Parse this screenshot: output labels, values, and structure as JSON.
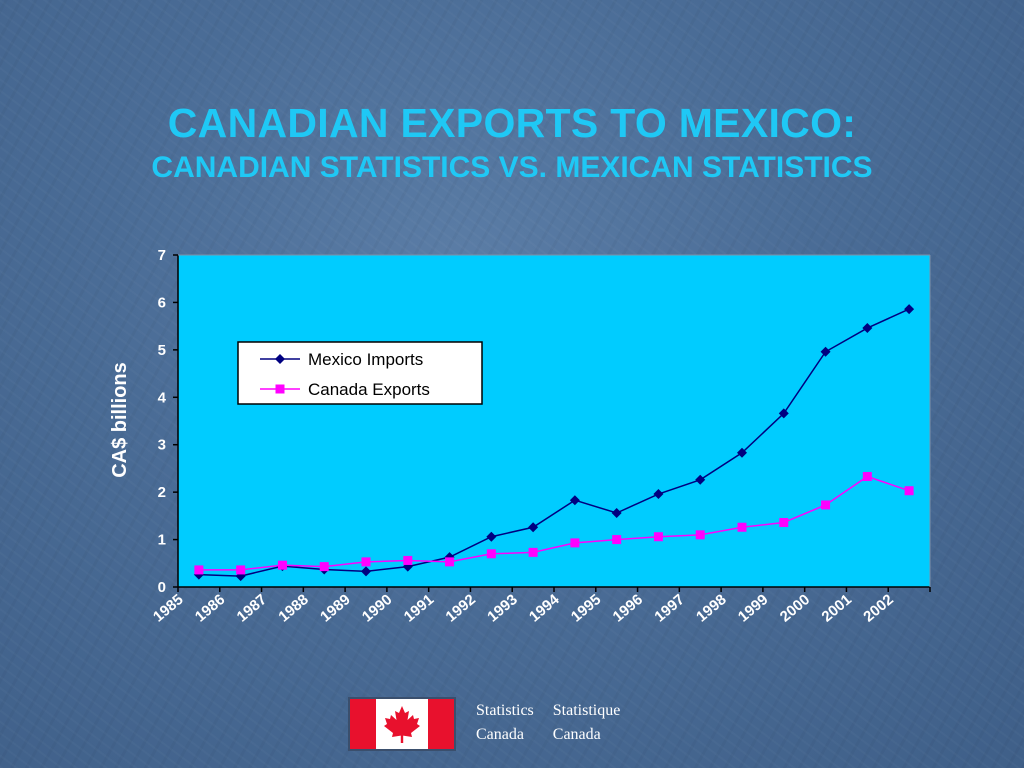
{
  "slide": {
    "title": "CANADIAN EXPORTS TO MEXICO:",
    "subtitle": "CANADIAN STATISTICS VS. MEXICAN STATISTICS"
  },
  "chart_data": {
    "type": "line",
    "ylabel": "CA$ billions",
    "ylim": [
      0,
      7
    ],
    "yticks": [
      "0",
      "1",
      "2",
      "3",
      "4",
      "5",
      "6",
      "7"
    ],
    "categories": [
      "1985",
      "1986",
      "1987",
      "1988",
      "1989",
      "1990",
      "1991",
      "1992",
      "1993",
      "1994",
      "1995",
      "1996",
      "1997",
      "1998",
      "1999",
      "2000",
      "2001",
      "2002"
    ],
    "legend_position": "upper-left",
    "grid": false,
    "series": [
      {
        "name": "Mexico Imports",
        "color": "#000080",
        "marker": "diamond",
        "values": [
          0.26,
          0.23,
          0.44,
          0.37,
          0.33,
          0.43,
          0.63,
          1.06,
          1.26,
          1.83,
          1.56,
          1.96,
          2.26,
          2.83,
          3.66,
          4.96,
          5.46,
          5.86
        ]
      },
      {
        "name": "Canada Exports",
        "color": "#ff00ff",
        "marker": "square",
        "values": [
          0.36,
          0.36,
          0.46,
          0.43,
          0.53,
          0.56,
          0.53,
          0.7,
          0.73,
          0.93,
          1.0,
          1.06,
          1.1,
          1.26,
          1.36,
          1.73,
          2.33,
          2.03
        ]
      }
    ],
    "colors": {
      "plot_background": "#00ccff",
      "axis": "#000000"
    }
  },
  "footer": {
    "flag_icon": "canada-flag-icon",
    "statcan_en_1": "Statistics",
    "statcan_en_2": "Canada",
    "statcan_fr_1": "Statistique",
    "statcan_fr_2": "Canada"
  }
}
